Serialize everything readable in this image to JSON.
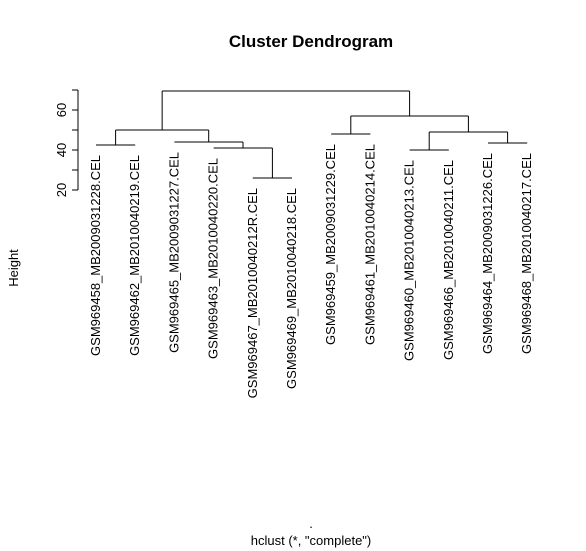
{
  "chart_data": {
    "type": "dendrogram",
    "title": "Cluster Dendrogram",
    "ylabel": "Height",
    "xlabel_dot": ".",
    "xlabel": "hclust (*, \"complete\")",
    "ylim": [
      20,
      70
    ],
    "yticks": [
      20,
      40,
      60
    ],
    "leaves": [
      "GSM969458_MB2009031228.CEL",
      "GSM969462_MB2010040219.CEL",
      "GSM969465_MB2009031227.CEL",
      "GSM969463_MB2010040220.CEL",
      "GSM969467_MB2010040212R.CEL",
      "GSM969469_MB2010040218.CEL",
      "GSM969459_MB2009031229.CEL",
      "GSM969461_MB2010040214.CEL",
      "GSM969460_MB2010040213.CEL",
      "GSM969466_MB2010040211.CEL",
      "GSM969464_MB2009031226.CEL",
      "GSM969468_MB2010040217.CEL"
    ],
    "leaf_heights": [
      42.5,
      42.5,
      44,
      41,
      26,
      26,
      48,
      48,
      40,
      40,
      43.5,
      43.5
    ],
    "merges": [
      {
        "left": 4,
        "right": 5,
        "height": 26
      },
      {
        "left": 8,
        "right": 9,
        "height": 40
      },
      {
        "left": 3,
        "right": "m0",
        "height": 41
      },
      {
        "left": 0,
        "right": 1,
        "height": 42.5
      },
      {
        "left": 10,
        "right": 11,
        "height": 43.5
      },
      {
        "left": 2,
        "right": "m2",
        "height": 44
      },
      {
        "left": 6,
        "right": 7,
        "height": 48
      },
      {
        "left": "m1",
        "right": "m4",
        "height": 49
      },
      {
        "left": "m3",
        "right": "m5",
        "height": 50
      },
      {
        "left": "m6",
        "right": "m7",
        "height": 57
      },
      {
        "left": "m8",
        "right": "m9",
        "height": 69.5
      }
    ]
  }
}
